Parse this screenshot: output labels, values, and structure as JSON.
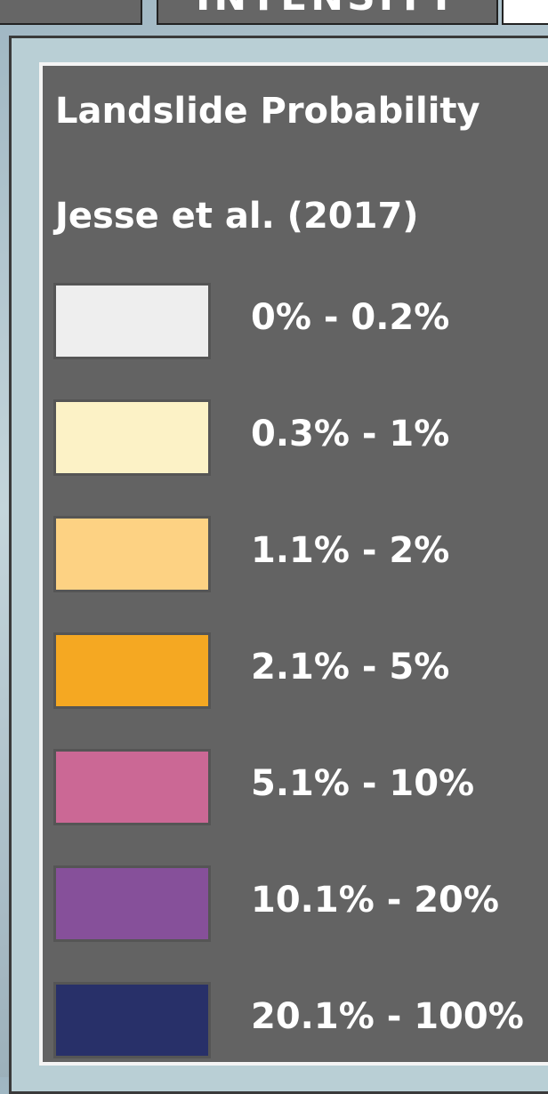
{
  "tabs": [
    {
      "label": "INTENSITY"
    }
  ],
  "legend": {
    "title": "Landslide Probability",
    "subtitle": "Jesse et al. (2017)",
    "items": [
      {
        "label": "0% - 0.2%",
        "color": "#eeeeee"
      },
      {
        "label": "0.3% - 1%",
        "color": "#fcf2c6"
      },
      {
        "label": "1.1% - 2%",
        "color": "#fdd283"
      },
      {
        "label": "2.1% - 5%",
        "color": "#f5a822"
      },
      {
        "label": "5.1% - 10%",
        "color": "#cb6895"
      },
      {
        "label": "10.1% - 20%",
        "color": "#86509a"
      },
      {
        "label": "20.1% - 100%",
        "color": "#283069"
      }
    ]
  }
}
